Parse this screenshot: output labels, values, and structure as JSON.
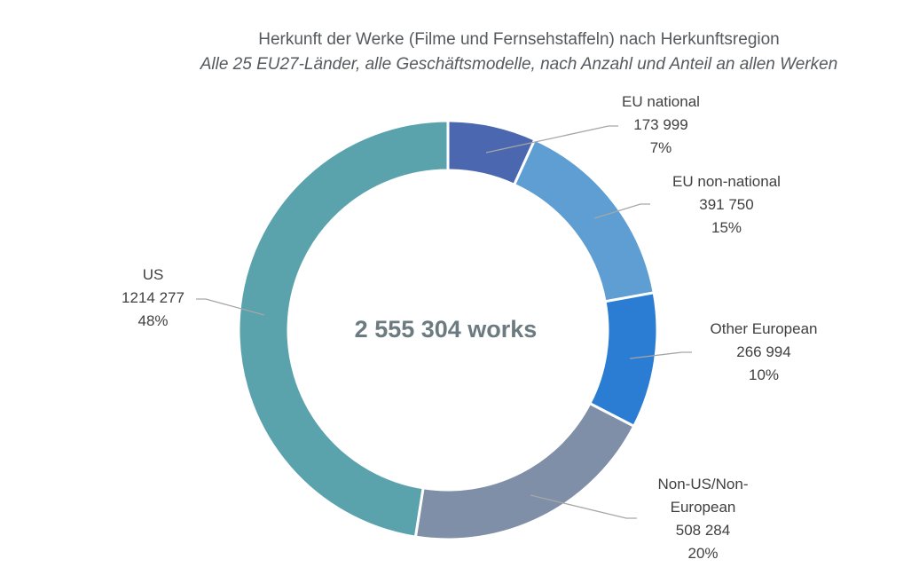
{
  "chart_data": {
    "type": "pie",
    "title": "Herkunft der Werke (Filme und Fernsehstaffeln) nach Herkunftsregion",
    "subtitle": "Alle 25 EU27-Länder, alle Geschäftsmodelle, nach Anzahl und Anteil an allen Werken",
    "center_label": "2 555 304 works",
    "total": 2555304,
    "slices": [
      {
        "label_lines": [
          "EU national"
        ],
        "value": 173999,
        "value_text": "173 999",
        "percent_text": "7%",
        "color": "#4a67b0"
      },
      {
        "label_lines": [
          "EU non-national"
        ],
        "value": 391750,
        "value_text": "391 750",
        "percent_text": "15%",
        "color": "#5f9ed2"
      },
      {
        "label_lines": [
          "Other European"
        ],
        "value": 266994,
        "value_text": "266 994",
        "percent_text": "10%",
        "color": "#2a7dd2"
      },
      {
        "label_lines": [
          "Non-US/Non-",
          "European"
        ],
        "value": 508284,
        "value_text": "508 284",
        "percent_text": "20%",
        "color": "#7f8fa8"
      },
      {
        "label_lines": [
          "US"
        ],
        "value": 1214277,
        "value_text": "1214 277",
        "percent_text": "48%",
        "color": "#5aa3ad"
      }
    ]
  }
}
